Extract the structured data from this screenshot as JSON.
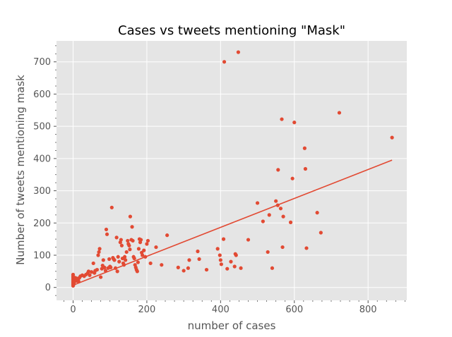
{
  "chart_data": {
    "type": "scatter",
    "title": "Cases vs tweets mentioning \"Mask\"",
    "xlabel": "number of cases",
    "ylabel": "Number of tweets mentioning mask",
    "xlim": [
      -45,
      905
    ],
    "ylim": [
      -40,
      765
    ],
    "xticks": [
      0,
      200,
      400,
      600,
      800
    ],
    "yticks": [
      0,
      100,
      200,
      300,
      400,
      500,
      600,
      700
    ],
    "grid": true,
    "legend": "none",
    "colors": {
      "background": "#e5e5e5",
      "grid": "#ffffff",
      "point": "#e24a33",
      "fit": "#e24a33"
    },
    "trendline": {
      "type": "linear fit",
      "x": [
        0,
        865
      ],
      "y": [
        7,
        395
      ]
    },
    "points": [
      [
        0,
        5
      ],
      [
        0,
        10
      ],
      [
        0,
        15
      ],
      [
        0,
        20
      ],
      [
        0,
        25
      ],
      [
        0,
        30
      ],
      [
        0,
        35
      ],
      [
        0,
        40
      ],
      [
        1,
        8
      ],
      [
        2,
        12
      ],
      [
        3,
        18
      ],
      [
        4,
        22
      ],
      [
        5,
        25
      ],
      [
        6,
        30
      ],
      [
        8,
        20
      ],
      [
        10,
        28
      ],
      [
        12,
        25
      ],
      [
        14,
        22
      ],
      [
        15,
        18
      ],
      [
        17,
        30
      ],
      [
        20,
        35
      ],
      [
        25,
        38
      ],
      [
        30,
        35
      ],
      [
        35,
        40
      ],
      [
        40,
        45
      ],
      [
        42,
        50
      ],
      [
        45,
        38
      ],
      [
        50,
        48
      ],
      [
        55,
        75
      ],
      [
        58,
        45
      ],
      [
        60,
        52
      ],
      [
        65,
        55
      ],
      [
        68,
        100
      ],
      [
        70,
        110
      ],
      [
        72,
        120
      ],
      [
        75,
        32
      ],
      [
        78,
        58
      ],
      [
        80,
        68
      ],
      [
        82,
        85
      ],
      [
        85,
        62
      ],
      [
        88,
        52
      ],
      [
        90,
        180
      ],
      [
        92,
        165
      ],
      [
        95,
        60
      ],
      [
        98,
        88
      ],
      [
        100,
        65
      ],
      [
        102,
        62
      ],
      [
        105,
        248
      ],
      [
        108,
        92
      ],
      [
        110,
        88
      ],
      [
        112,
        85
      ],
      [
        115,
        60
      ],
      [
        118,
        155
      ],
      [
        120,
        50
      ],
      [
        122,
        95
      ],
      [
        125,
        80
      ],
      [
        128,
        140
      ],
      [
        130,
        148
      ],
      [
        132,
        130
      ],
      [
        134,
        90
      ],
      [
        136,
        75
      ],
      [
        138,
        70
      ],
      [
        140,
        95
      ],
      [
        142,
        85
      ],
      [
        145,
        110
      ],
      [
        148,
        145
      ],
      [
        150,
        135
      ],
      [
        152,
        130
      ],
      [
        154,
        118
      ],
      [
        155,
        220
      ],
      [
        158,
        148
      ],
      [
        160,
        188
      ],
      [
        162,
        145
      ],
      [
        164,
        95
      ],
      [
        166,
        90
      ],
      [
        168,
        70
      ],
      [
        170,
        62
      ],
      [
        172,
        55
      ],
      [
        174,
        50
      ],
      [
        176,
        78
      ],
      [
        178,
        120
      ],
      [
        180,
        150
      ],
      [
        182,
        140
      ],
      [
        184,
        148
      ],
      [
        186,
        108
      ],
      [
        188,
        100
      ],
      [
        192,
        115
      ],
      [
        196,
        95
      ],
      [
        200,
        135
      ],
      [
        203,
        145
      ],
      [
        210,
        75
      ],
      [
        225,
        125
      ],
      [
        240,
        70
      ],
      [
        255,
        162
      ],
      [
        285,
        62
      ],
      [
        300,
        52
      ],
      [
        312,
        60
      ],
      [
        315,
        85
      ],
      [
        338,
        112
      ],
      [
        342,
        88
      ],
      [
        362,
        55
      ],
      [
        392,
        120
      ],
      [
        398,
        100
      ],
      [
        400,
        85
      ],
      [
        402,
        72
      ],
      [
        408,
        150
      ],
      [
        410,
        700
      ],
      [
        418,
        58
      ],
      [
        428,
        80
      ],
      [
        438,
        65
      ],
      [
        440,
        104
      ],
      [
        442,
        100
      ],
      [
        448,
        730
      ],
      [
        455,
        60
      ],
      [
        475,
        148
      ],
      [
        500,
        262
      ],
      [
        515,
        205
      ],
      [
        528,
        110
      ],
      [
        532,
        225
      ],
      [
        540,
        60
      ],
      [
        550,
        268
      ],
      [
        555,
        255
      ],
      [
        556,
        365
      ],
      [
        563,
        245
      ],
      [
        566,
        522
      ],
      [
        568,
        125
      ],
      [
        570,
        220
      ],
      [
        590,
        202
      ],
      [
        595,
        338
      ],
      [
        600,
        512
      ],
      [
        628,
        432
      ],
      [
        630,
        368
      ],
      [
        633,
        122
      ],
      [
        662,
        232
      ],
      [
        672,
        170
      ],
      [
        722,
        542
      ],
      [
        865,
        465
      ]
    ]
  }
}
